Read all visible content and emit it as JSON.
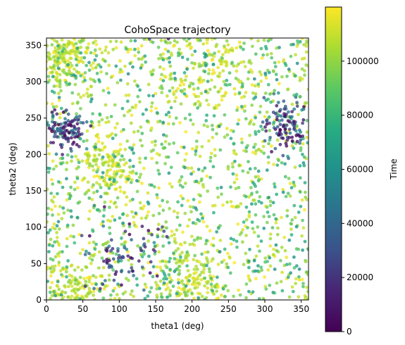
{
  "chart_data": {
    "type": "scatter",
    "title": "CohoSpace trajectory",
    "xlabel": "theta1 (deg)",
    "ylabel": "theta2 (deg)",
    "xlim": [
      0,
      360
    ],
    "ylim": [
      0,
      360
    ],
    "xticks": [
      0,
      50,
      100,
      150,
      200,
      250,
      300,
      350
    ],
    "yticks": [
      0,
      50,
      100,
      150,
      200,
      250,
      300,
      350
    ],
    "grid": false,
    "legend": "none",
    "colormap": "viridis",
    "point_alpha": 0.8,
    "point_count": 2400,
    "colorbar": {
      "label": "Time",
      "range": [
        0,
        120000
      ],
      "ticks": [
        0,
        20000,
        40000,
        60000,
        80000,
        100000
      ]
    },
    "early_time_clusters": [
      {
        "center": [
          110,
          60
        ],
        "spread": [
          45,
          40
        ]
      },
      {
        "center": [
          25,
          230
        ],
        "spread": [
          20,
          25
        ]
      },
      {
        "center": [
          330,
          240
        ],
        "spread": [
          25,
          30
        ]
      }
    ],
    "late_time_regions": [
      {
        "center": [
          220,
          320
        ],
        "spread": [
          60,
          40
        ]
      },
      {
        "center": [
          80,
          190
        ],
        "spread": [
          30,
          30
        ]
      },
      {
        "center": [
          200,
          30
        ],
        "spread": [
          40,
          35
        ]
      },
      {
        "center": [
          40,
          20
        ],
        "spread": [
          30,
          25
        ]
      },
      {
        "center": [
          20,
          330
        ],
        "spread": [
          25,
          25
        ]
      }
    ]
  }
}
